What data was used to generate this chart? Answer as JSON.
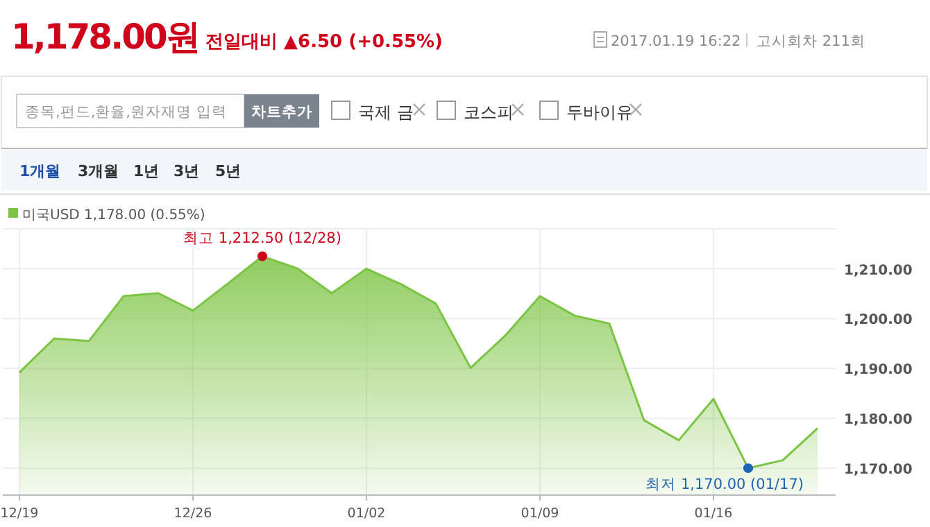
{
  "chart_data": {
    "type": "area",
    "title": "1,178.00원",
    "subtitle": "전일대비 ▲6.50 (+0.55%)",
    "categories": [
      "12/19",
      null,
      null,
      null,
      null,
      "12/26",
      null,
      null,
      null,
      null,
      "01/02",
      null,
      null,
      null,
      null,
      "01/09",
      null,
      null,
      null,
      null,
      "01/16",
      null,
      null,
      null
    ],
    "series": [
      {
        "name": "미국USD 1,178.00 (0.55%)",
        "color": "#7cc443",
        "values": [
          1189.2,
          1196.0,
          1195.5,
          1204.5,
          1205.1,
          1201.6,
          1207.0,
          1212.5,
          1210.1,
          1205.1,
          1210.0,
          1206.9,
          1203.0,
          1190.1,
          1196.6,
          1204.5,
          1200.6,
          1199.0,
          1179.6,
          1175.6,
          1183.9,
          1170.0,
          1171.6,
          1178.0
        ]
      }
    ],
    "ylim": [
      1164.6,
      1218
    ],
    "yticks": [
      {
        "value": 1170,
        "label": "1,170.00"
      },
      {
        "value": 1180,
        "label": "1,180.00"
      },
      {
        "value": 1190,
        "label": "1,190.00"
      },
      {
        "value": 1200,
        "label": "1,200.00"
      },
      {
        "value": 1210,
        "label": "1,210.00"
      }
    ],
    "grid": true,
    "legend": "top left",
    "annotations": [
      "2017.01.19 16:22",
      "고시회차 211회",
      "종목,펀드,환율,원자재명 입력",
      "차트추가",
      "국제 금",
      "코스피",
      "두바이유",
      "1개월",
      "3개월",
      "1년",
      "3년",
      "5년",
      "최고 1,212.50 (12/28)",
      "최저 1,170.00 (01/17)"
    ]
  }
}
